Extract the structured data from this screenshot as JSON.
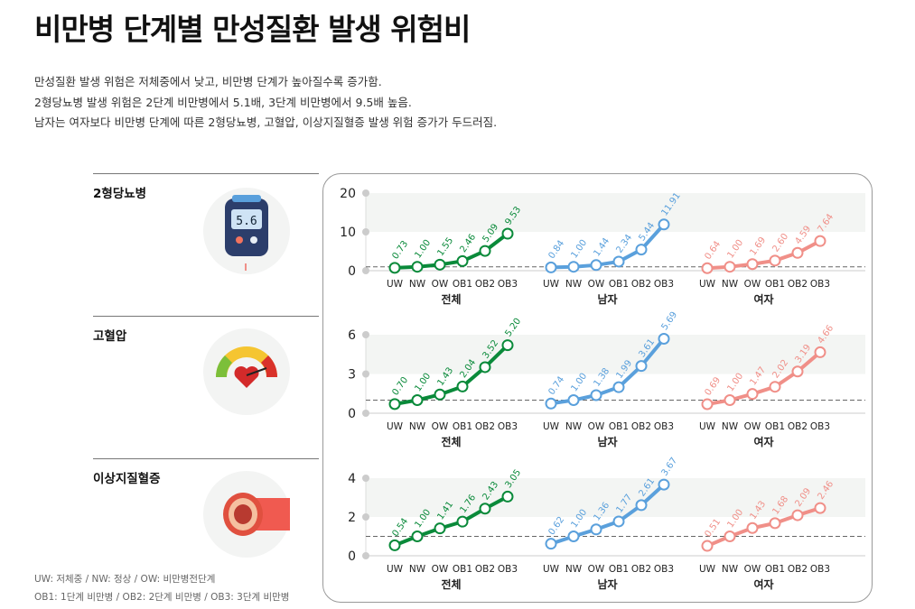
{
  "title": "비만병 단계별 만성질환 발생 위험비",
  "description": [
    "만성질환 발생 위험은 저체중에서 낮고, 비만병 단계가 높아질수록 증가함.",
    "2형당뇨병 발생 위험은 2단계 비만병에서 5.1배, 3단계 비만병에서 9.5배 높음.",
    "남자는 여자보다 비만병 단계에 따른 2형당뇨병, 고혈압, 이상지질혈증 발생 위험 증가가 두드러짐."
  ],
  "footnote": [
    "UW: 저체중 / NW: 정상 / OW: 비만병전단계",
    "OB1: 1단계 비만병 / OB2: 2단계 비만병 / OB3: 3단계 비만병"
  ],
  "icons": {
    "diabetes": "glucose-meter",
    "hypertension": "gauge-heart",
    "dyslipidemia": "blood-vessel"
  },
  "meter_reading": "5.6",
  "colors": {
    "전체": "#0a8a3a",
    "남자": "#5aa0dc",
    "여자": "#f08f88"
  },
  "chart_data": [
    {
      "type": "line",
      "title": "2형당뇨병",
      "ylim": [
        0,
        20
      ],
      "yticks": [
        0,
        10,
        20
      ],
      "reference": 1,
      "categories": [
        "UW",
        "NW",
        "OW",
        "OB1",
        "OB2",
        "OB3"
      ],
      "series": [
        {
          "name": "전체",
          "values": [
            0.73,
            1.0,
            1.55,
            2.46,
            5.09,
            9.53
          ]
        },
        {
          "name": "남자",
          "values": [
            0.84,
            1.0,
            1.44,
            2.34,
            5.44,
            11.91
          ]
        },
        {
          "name": "여자",
          "values": [
            0.64,
            1.0,
            1.69,
            2.6,
            4.59,
            7.64
          ]
        }
      ]
    },
    {
      "type": "line",
      "title": "고혈압",
      "ylim": [
        0,
        6
      ],
      "yticks": [
        0,
        3,
        6
      ],
      "reference": 1,
      "categories": [
        "UW",
        "NW",
        "OW",
        "OB1",
        "OB2",
        "OB3"
      ],
      "series": [
        {
          "name": "전체",
          "values": [
            0.7,
            1.0,
            1.43,
            2.04,
            3.52,
            5.2
          ]
        },
        {
          "name": "남자",
          "values": [
            0.74,
            1.0,
            1.38,
            1.99,
            3.61,
            5.69
          ]
        },
        {
          "name": "여자",
          "values": [
            0.69,
            1.0,
            1.47,
            2.02,
            3.19,
            4.66
          ]
        }
      ]
    },
    {
      "type": "line",
      "title": "이상지질혈증",
      "ylim": [
        0,
        4
      ],
      "yticks": [
        0,
        2,
        4
      ],
      "reference": 1,
      "categories": [
        "UW",
        "NW",
        "OW",
        "OB1",
        "OB2",
        "OB3"
      ],
      "series": [
        {
          "name": "전체",
          "values": [
            0.54,
            1.0,
            1.41,
            1.76,
            2.43,
            3.05
          ]
        },
        {
          "name": "남자",
          "values": [
            0.62,
            1.0,
            1.36,
            1.77,
            2.61,
            3.67
          ]
        },
        {
          "name": "여자",
          "values": [
            0.51,
            1.0,
            1.43,
            1.68,
            2.09,
            2.46
          ]
        }
      ]
    }
  ]
}
